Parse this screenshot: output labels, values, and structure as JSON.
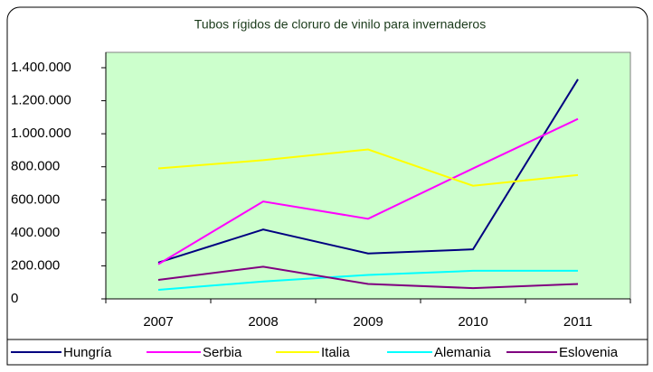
{
  "chart_data": {
    "type": "line",
    "title": "Tubos rígidos de cloruro de vinilo para invernaderos",
    "categories": [
      "2007",
      "2008",
      "2009",
      "2010",
      "2011"
    ],
    "series": [
      {
        "name": "Hungría",
        "color": "#000080",
        "values": [
          220000,
          420000,
          275000,
          300000,
          1330000
        ]
      },
      {
        "name": "Serbia",
        "color": "#ff00ff",
        "values": [
          210000,
          590000,
          485000,
          790000,
          1090000
        ]
      },
      {
        "name": "Italia",
        "color": "#ffff00",
        "values": [
          790000,
          840000,
          905000,
          685000,
          750000
        ]
      },
      {
        "name": "Alemania",
        "color": "#00ffff",
        "values": [
          55000,
          105000,
          145000,
          170000,
          170000
        ]
      },
      {
        "name": "Eslovenia",
        "color": "#800080",
        "values": [
          115000,
          195000,
          90000,
          65000,
          90000
        ]
      }
    ],
    "ylim": [
      0,
      1400000
    ],
    "yticks": [
      0,
      {
        "value": 200000,
        "label": "200.000"
      },
      {
        "value": 400000,
        "label": "400.000"
      },
      {
        "value": 600000,
        "label": "600.000"
      },
      {
        "value": 800000,
        "label": "800.000"
      },
      {
        "value": 1000000,
        "label": "1.000.000"
      },
      {
        "value": 1200000,
        "label": "1.200.000"
      },
      {
        "value": 1400000,
        "label": "1.400.000"
      }
    ],
    "legend": "bottom"
  }
}
